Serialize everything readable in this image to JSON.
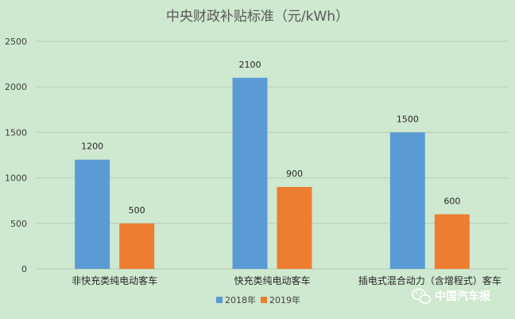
{
  "chart_data": {
    "type": "bar",
    "title": "中央财政补贴标准（元/kWh）",
    "categories": [
      "非快充类纯电动客车",
      "快充类纯电动客车",
      "插电式混合动力（含增程式）客车"
    ],
    "series": [
      {
        "name": "2018年",
        "values": [
          1200,
          2100,
          1500
        ],
        "color": "#5b9bd5"
      },
      {
        "name": "2019年",
        "values": [
          500,
          900,
          600
        ],
        "color": "#ed7d31"
      }
    ],
    "ylim": [
      0,
      2500
    ],
    "yticks": [
      0,
      500,
      1000,
      1500,
      2000,
      2500
    ],
    "grid": true,
    "legend_position": "bottom"
  },
  "watermark": {
    "text": "中国汽车报",
    "icon": "wechat-icon"
  },
  "colors": {
    "background": "#cfe8d0",
    "grid": "#b5ccb6"
  }
}
